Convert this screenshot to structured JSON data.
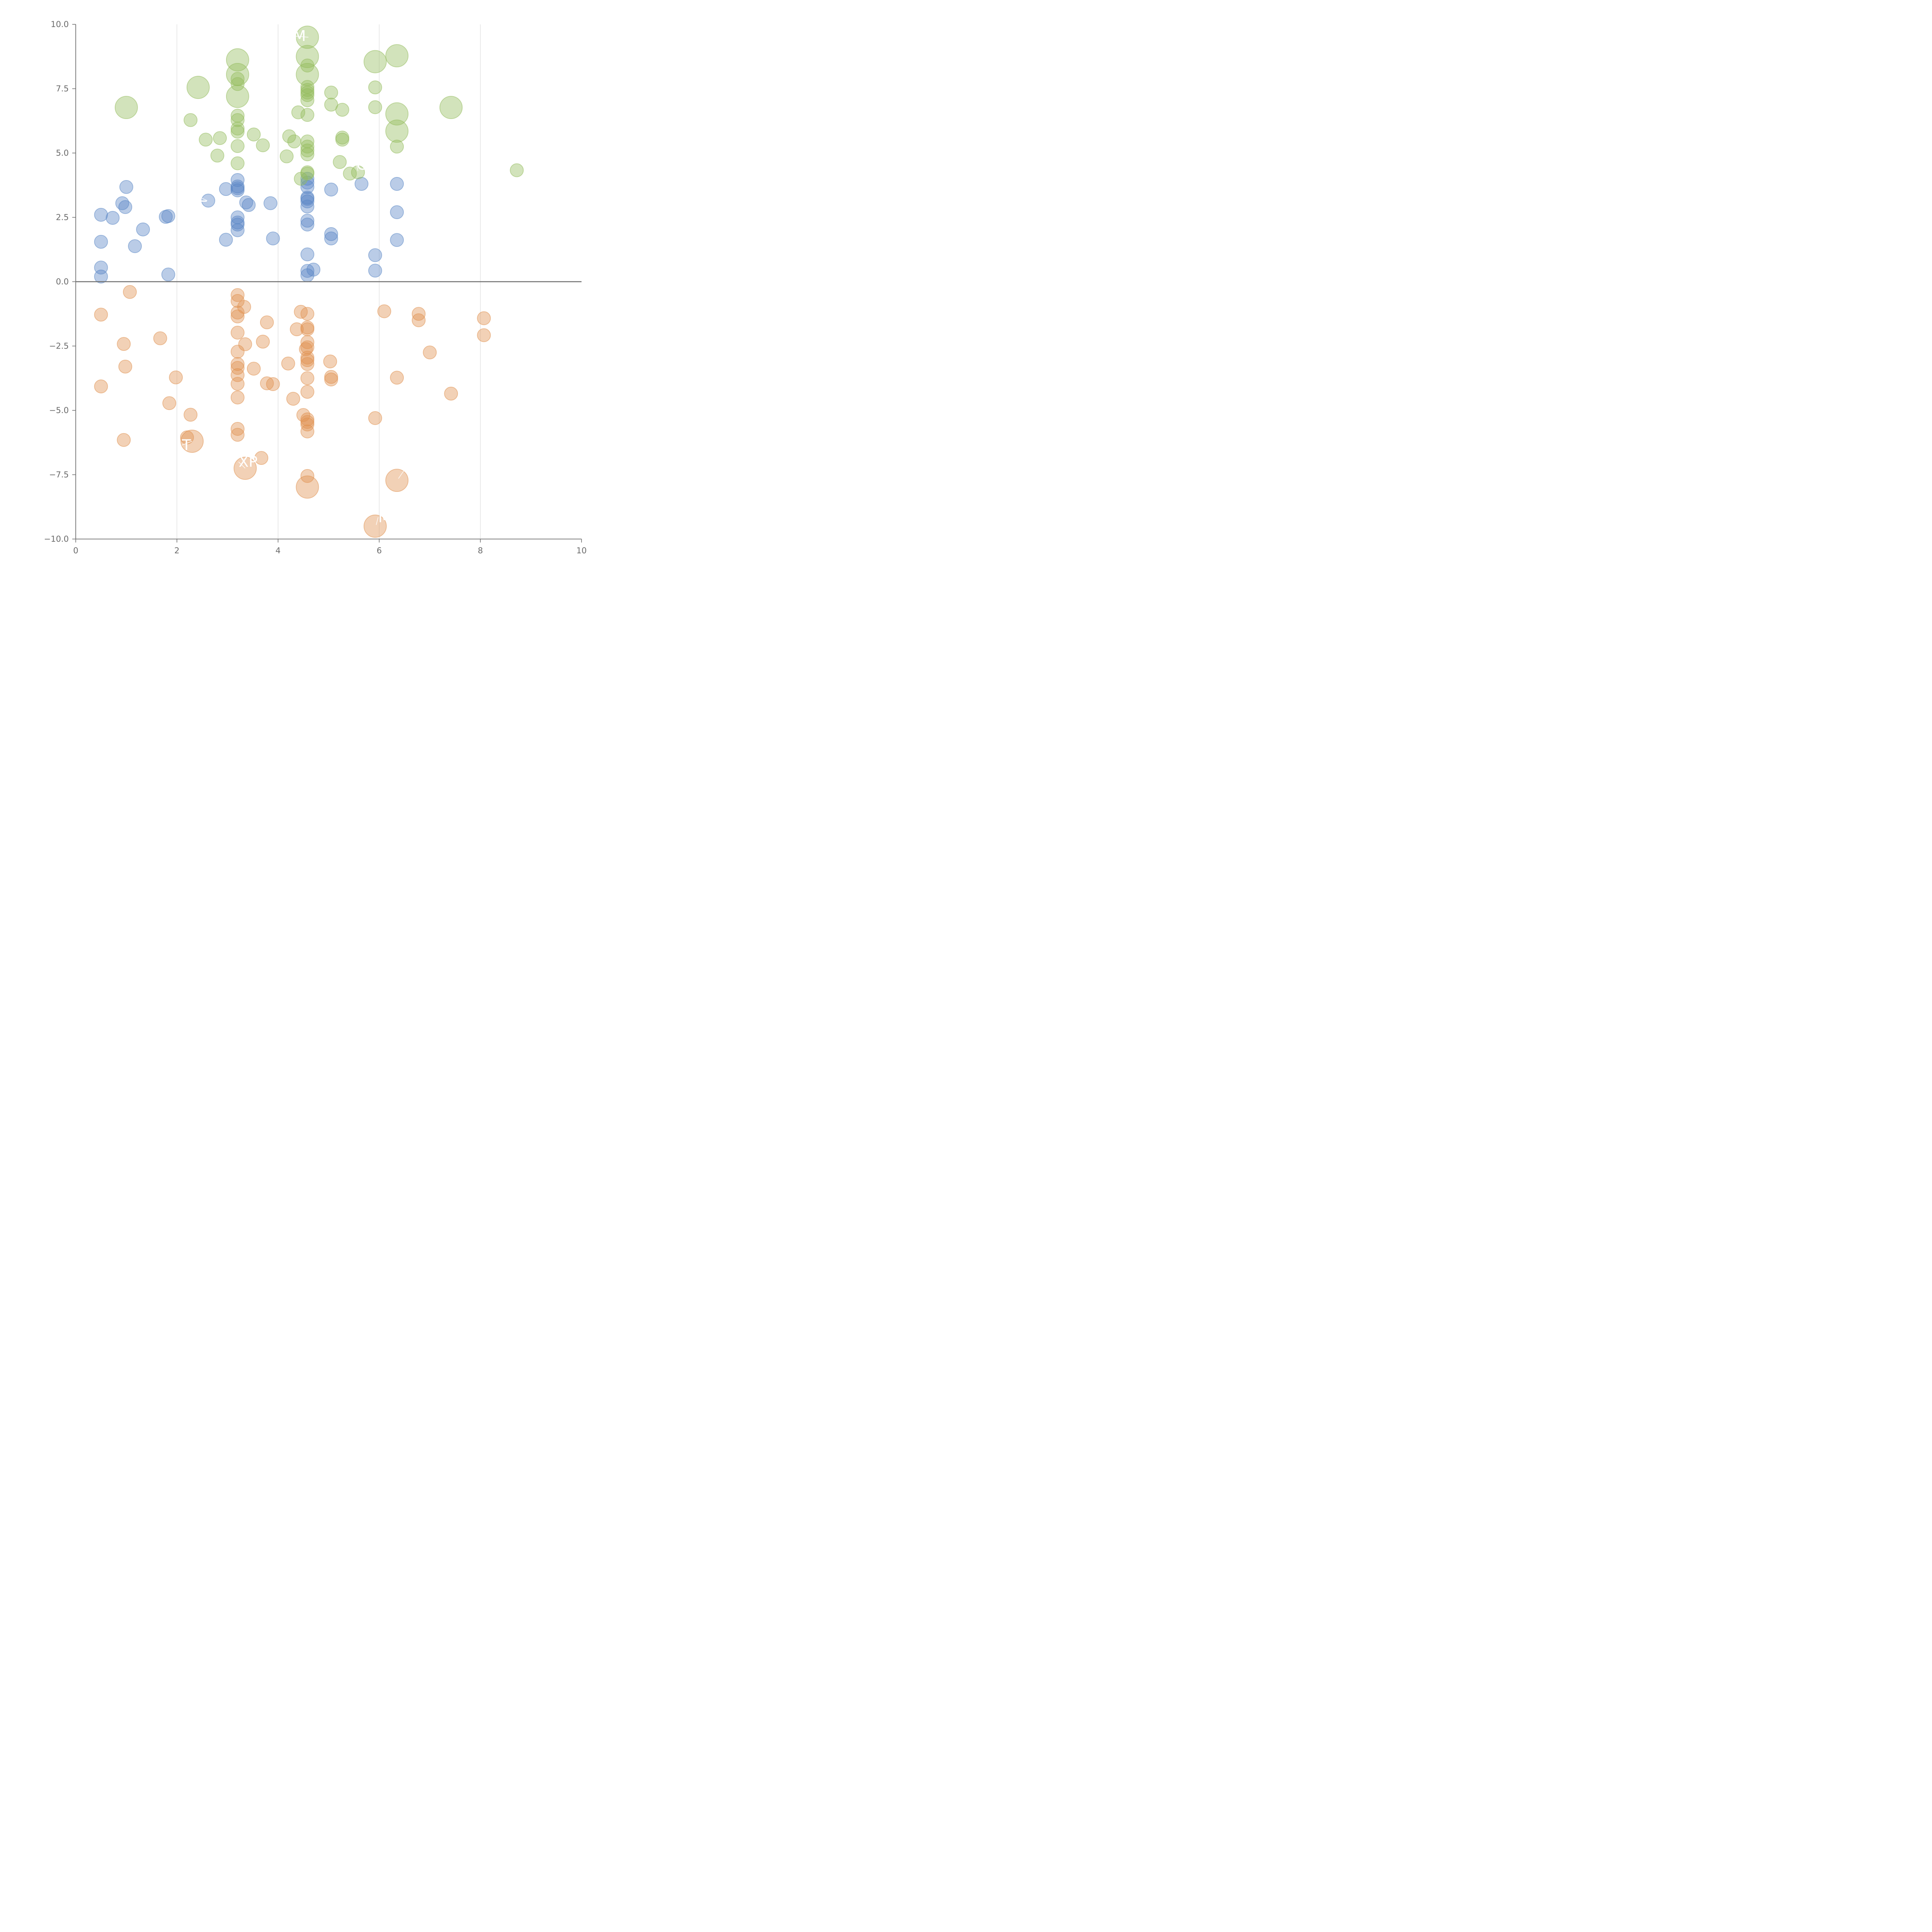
{
  "colors": {
    "blue": "#5a86c5",
    "green": "#93bc5c",
    "orange": "#e09250"
  },
  "chart_data": {
    "type": "scatter",
    "xlim": [
      0,
      10
    ],
    "ylim": [
      -10,
      10
    ],
    "xticks": [
      "0",
      "2",
      "4",
      "6",
      "8",
      "10"
    ],
    "yticks": [
      "10.0",
      "7.5",
      "5.0",
      "2.5",
      "0.0",
      "−2.5",
      "−5.0",
      "−7.5",
      "−10.0"
    ],
    "grid": "vertical-only",
    "series": [
      {
        "color": "blue",
        "points": [
          {
            "x": 0.5,
            "y": 2.6,
            "s": 1
          },
          {
            "x": 0.5,
            "y": 1.55,
            "s": 1
          },
          {
            "x": 0.5,
            "y": 0.55,
            "s": 1
          },
          {
            "x": 0.5,
            "y": 0.2,
            "s": 1
          },
          {
            "x": 0.73,
            "y": 2.48,
            "s": 1
          },
          {
            "x": 0.92,
            "y": 3.05,
            "s": 1
          },
          {
            "x": 0.98,
            "y": 2.9,
            "s": 1
          },
          {
            "x": 1.0,
            "y": 3.68,
            "s": 1
          },
          {
            "x": 1.17,
            "y": 1.38,
            "s": 1
          },
          {
            "x": 1.33,
            "y": 2.03,
            "s": 1
          },
          {
            "x": 1.78,
            "y": 2.52,
            "s": 1
          },
          {
            "x": 1.83,
            "y": 2.55,
            "s": 1
          },
          {
            "x": 1.83,
            "y": 0.28,
            "s": 1
          },
          {
            "x": 2.62,
            "y": 3.15,
            "s": 1
          },
          {
            "x": 2.97,
            "y": 3.6,
            "s": 1
          },
          {
            "x": 2.97,
            "y": 1.63,
            "s": 1
          },
          {
            "x": 3.2,
            "y": 3.95,
            "s": 1
          },
          {
            "x": 3.2,
            "y": 3.7,
            "s": 1
          },
          {
            "x": 3.2,
            "y": 3.63,
            "s": 1
          },
          {
            "x": 3.2,
            "y": 3.55,
            "s": 1
          },
          {
            "x": 3.2,
            "y": 2.5,
            "s": 1
          },
          {
            "x": 3.2,
            "y": 2.3,
            "s": 1
          },
          {
            "x": 3.2,
            "y": 2.22,
            "s": 1
          },
          {
            "x": 3.2,
            "y": 2.0,
            "s": 1
          },
          {
            "x": 3.37,
            "y": 3.08,
            "s": 1
          },
          {
            "x": 3.42,
            "y": 2.98,
            "s": 1
          },
          {
            "x": 3.85,
            "y": 3.05,
            "s": 1
          },
          {
            "x": 3.9,
            "y": 1.68,
            "s": 1
          },
          {
            "x": 4.58,
            "y": 4.0,
            "s": 1
          },
          {
            "x": 4.58,
            "y": 3.85,
            "s": 1
          },
          {
            "x": 4.58,
            "y": 3.68,
            "s": 1
          },
          {
            "x": 4.58,
            "y": 3.27,
            "s": 1
          },
          {
            "x": 4.58,
            "y": 3.22,
            "s": 1
          },
          {
            "x": 4.58,
            "y": 3.12,
            "s": 1
          },
          {
            "x": 4.58,
            "y": 2.92,
            "s": 1
          },
          {
            "x": 4.58,
            "y": 2.37,
            "s": 1
          },
          {
            "x": 4.58,
            "y": 2.22,
            "s": 1
          },
          {
            "x": 4.58,
            "y": 1.06,
            "s": 1
          },
          {
            "x": 4.58,
            "y": 0.42,
            "s": 1
          },
          {
            "x": 4.58,
            "y": 0.25,
            "s": 1
          },
          {
            "x": 4.7,
            "y": 0.47,
            "s": 1
          },
          {
            "x": 5.05,
            "y": 3.58,
            "s": 1
          },
          {
            "x": 5.05,
            "y": 1.85,
            "s": 1
          },
          {
            "x": 5.05,
            "y": 1.68,
            "s": 1
          },
          {
            "x": 5.65,
            "y": 3.8,
            "s": 1
          },
          {
            "x": 5.92,
            "y": 1.03,
            "s": 1
          },
          {
            "x": 5.92,
            "y": 0.43,
            "s": 1
          },
          {
            "x": 6.35,
            "y": 3.8,
            "s": 1
          },
          {
            "x": 6.35,
            "y": 2.7,
            "s": 1
          },
          {
            "x": 6.35,
            "y": 1.62,
            "s": 1
          }
        ]
      },
      {
        "color": "green",
        "points": [
          {
            "x": 1.0,
            "y": 6.77,
            "s": 2
          },
          {
            "x": 2.27,
            "y": 6.28,
            "s": 1
          },
          {
            "x": 2.42,
            "y": 7.55,
            "s": 2
          },
          {
            "x": 2.57,
            "y": 5.52,
            "s": 1
          },
          {
            "x": 2.8,
            "y": 4.9,
            "s": 1
          },
          {
            "x": 2.85,
            "y": 5.58,
            "s": 1
          },
          {
            "x": 3.2,
            "y": 8.62,
            "s": 2
          },
          {
            "x": 3.2,
            "y": 8.05,
            "s": 2
          },
          {
            "x": 3.2,
            "y": 7.88,
            "s": 1
          },
          {
            "x": 3.2,
            "y": 7.68,
            "s": 1
          },
          {
            "x": 3.2,
            "y": 7.2,
            "s": 2
          },
          {
            "x": 3.2,
            "y": 6.45,
            "s": 1
          },
          {
            "x": 3.2,
            "y": 6.28,
            "s": 1
          },
          {
            "x": 3.2,
            "y": 5.95,
            "s": 1
          },
          {
            "x": 3.2,
            "y": 5.83,
            "s": 1
          },
          {
            "x": 3.2,
            "y": 5.27,
            "s": 1
          },
          {
            "x": 3.2,
            "y": 4.6,
            "s": 1
          },
          {
            "x": 3.52,
            "y": 5.72,
            "s": 1
          },
          {
            "x": 3.7,
            "y": 5.3,
            "s": 1
          },
          {
            "x": 4.17,
            "y": 4.87,
            "s": 1
          },
          {
            "x": 4.22,
            "y": 5.65,
            "s": 1
          },
          {
            "x": 4.32,
            "y": 5.45,
            "s": 1
          },
          {
            "x": 4.4,
            "y": 6.58,
            "s": 1
          },
          {
            "x": 4.45,
            "y": 4.0,
            "s": 1
          },
          {
            "x": 4.58,
            "y": 9.5,
            "s": 2
          },
          {
            "x": 4.58,
            "y": 8.75,
            "s": 2
          },
          {
            "x": 4.58,
            "y": 8.05,
            "s": 2
          },
          {
            "x": 4.58,
            "y": 8.4,
            "s": 1
          },
          {
            "x": 4.58,
            "y": 7.57,
            "s": 1
          },
          {
            "x": 4.58,
            "y": 7.45,
            "s": 1
          },
          {
            "x": 4.58,
            "y": 7.35,
            "s": 1
          },
          {
            "x": 4.58,
            "y": 7.25,
            "s": 1
          },
          {
            "x": 4.58,
            "y": 7.05,
            "s": 1
          },
          {
            "x": 4.58,
            "y": 6.48,
            "s": 1
          },
          {
            "x": 4.58,
            "y": 5.45,
            "s": 1
          },
          {
            "x": 4.58,
            "y": 5.25,
            "s": 1
          },
          {
            "x": 4.58,
            "y": 5.1,
            "s": 1
          },
          {
            "x": 4.58,
            "y": 4.95,
            "s": 1
          },
          {
            "x": 4.58,
            "y": 4.25,
            "s": 1
          },
          {
            "x": 4.58,
            "y": 4.2,
            "s": 1
          },
          {
            "x": 5.05,
            "y": 7.35,
            "s": 1
          },
          {
            "x": 5.05,
            "y": 6.88,
            "s": 1
          },
          {
            "x": 5.22,
            "y": 4.65,
            "s": 1
          },
          {
            "x": 5.27,
            "y": 6.68,
            "s": 1
          },
          {
            "x": 5.27,
            "y": 5.6,
            "s": 1
          },
          {
            "x": 5.27,
            "y": 5.52,
            "s": 1
          },
          {
            "x": 5.42,
            "y": 4.2,
            "s": 1
          },
          {
            "x": 5.58,
            "y": 4.25,
            "s": 1
          },
          {
            "x": 5.92,
            "y": 8.55,
            "s": 2
          },
          {
            "x": 5.92,
            "y": 7.55,
            "s": 1
          },
          {
            "x": 5.92,
            "y": 6.78,
            "s": 1
          },
          {
            "x": 6.35,
            "y": 8.78,
            "s": 2
          },
          {
            "x": 6.35,
            "y": 6.52,
            "s": 2
          },
          {
            "x": 6.35,
            "y": 5.85,
            "s": 2
          },
          {
            "x": 6.35,
            "y": 5.25,
            "s": 1
          },
          {
            "x": 7.42,
            "y": 6.77,
            "s": 2
          },
          {
            "x": 8.72,
            "y": 4.33,
            "s": 1
          }
        ]
      },
      {
        "color": "orange",
        "points": [
          {
            "x": 0.5,
            "y": -1.28,
            "s": 1
          },
          {
            "x": 0.5,
            "y": -4.07,
            "s": 1
          },
          {
            "x": 0.95,
            "y": -2.42,
            "s": 1
          },
          {
            "x": 0.95,
            "y": -6.15,
            "s": 1
          },
          {
            "x": 0.98,
            "y": -3.3,
            "s": 1
          },
          {
            "x": 1.07,
            "y": -0.4,
            "s": 1
          },
          {
            "x": 1.67,
            "y": -2.2,
            "s": 1
          },
          {
            "x": 1.85,
            "y": -4.72,
            "s": 1
          },
          {
            "x": 1.98,
            "y": -3.72,
            "s": 1
          },
          {
            "x": 2.2,
            "y": -6.05,
            "s": 1
          },
          {
            "x": 2.27,
            "y": -5.17,
            "s": 1
          },
          {
            "x": 2.3,
            "y": -6.2,
            "s": 2
          },
          {
            "x": 3.2,
            "y": -0.52,
            "s": 1
          },
          {
            "x": 3.2,
            "y": -0.75,
            "s": 1
          },
          {
            "x": 3.2,
            "y": -1.2,
            "s": 1
          },
          {
            "x": 3.2,
            "y": -1.35,
            "s": 1
          },
          {
            "x": 3.2,
            "y": -1.98,
            "s": 1
          },
          {
            "x": 3.2,
            "y": -2.72,
            "s": 1
          },
          {
            "x": 3.2,
            "y": -3.2,
            "s": 1
          },
          {
            "x": 3.2,
            "y": -3.35,
            "s": 1
          },
          {
            "x": 3.2,
            "y": -3.63,
            "s": 1
          },
          {
            "x": 3.2,
            "y": -3.97,
            "s": 1
          },
          {
            "x": 3.2,
            "y": -4.5,
            "s": 1
          },
          {
            "x": 3.2,
            "y": -5.72,
            "s": 1
          },
          {
            "x": 3.2,
            "y": -5.95,
            "s": 1
          },
          {
            "x": 3.33,
            "y": -0.98,
            "s": 1
          },
          {
            "x": 3.35,
            "y": -2.43,
            "s": 1
          },
          {
            "x": 3.35,
            "y": -7.25,
            "s": 2
          },
          {
            "x": 3.52,
            "y": -3.38,
            "s": 1
          },
          {
            "x": 3.67,
            "y": -6.85,
            "s": 1
          },
          {
            "x": 3.7,
            "y": -2.33,
            "s": 1
          },
          {
            "x": 3.78,
            "y": -1.58,
            "s": 1
          },
          {
            "x": 3.78,
            "y": -3.95,
            "s": 1
          },
          {
            "x": 3.9,
            "y": -3.98,
            "s": 1
          },
          {
            "x": 4.2,
            "y": -3.18,
            "s": 1
          },
          {
            "x": 4.3,
            "y": -4.55,
            "s": 1
          },
          {
            "x": 4.37,
            "y": -1.85,
            "s": 1
          },
          {
            "x": 4.45,
            "y": -1.17,
            "s": 1
          },
          {
            "x": 4.5,
            "y": -5.18,
            "s": 1
          },
          {
            "x": 4.55,
            "y": -2.62,
            "s": 1
          },
          {
            "x": 4.58,
            "y": -1.25,
            "s": 1
          },
          {
            "x": 4.58,
            "y": -1.78,
            "s": 1
          },
          {
            "x": 4.58,
            "y": -1.85,
            "s": 1
          },
          {
            "x": 4.58,
            "y": -2.35,
            "s": 1
          },
          {
            "x": 4.58,
            "y": -2.55,
            "s": 1
          },
          {
            "x": 4.58,
            "y": -2.95,
            "s": 1
          },
          {
            "x": 4.58,
            "y": -3.05,
            "s": 1
          },
          {
            "x": 4.58,
            "y": -3.2,
            "s": 1
          },
          {
            "x": 4.58,
            "y": -3.75,
            "s": 1
          },
          {
            "x": 4.58,
            "y": -4.28,
            "s": 1
          },
          {
            "x": 4.58,
            "y": -5.35,
            "s": 1
          },
          {
            "x": 4.58,
            "y": -5.45,
            "s": 1
          },
          {
            "x": 4.58,
            "y": -5.55,
            "s": 1
          },
          {
            "x": 4.58,
            "y": -5.82,
            "s": 1
          },
          {
            "x": 4.58,
            "y": -7.55,
            "s": 1
          },
          {
            "x": 4.58,
            "y": -7.98,
            "s": 2
          },
          {
            "x": 5.03,
            "y": -3.1,
            "s": 1
          },
          {
            "x": 5.05,
            "y": -3.7,
            "s": 1
          },
          {
            "x": 5.05,
            "y": -3.8,
            "s": 1
          },
          {
            "x": 5.92,
            "y": -5.3,
            "s": 1
          },
          {
            "x": 5.92,
            "y": -9.5,
            "s": 2
          },
          {
            "x": 6.1,
            "y": -1.15,
            "s": 1
          },
          {
            "x": 6.35,
            "y": -3.73,
            "s": 1
          },
          {
            "x": 6.35,
            "y": -7.72,
            "s": 2
          },
          {
            "x": 6.78,
            "y": -1.25,
            "s": 1
          },
          {
            "x": 6.78,
            "y": -1.5,
            "s": 1
          },
          {
            "x": 7.0,
            "y": -2.75,
            "s": 1
          },
          {
            "x": 7.42,
            "y": -4.35,
            "s": 1
          },
          {
            "x": 8.07,
            "y": -1.42,
            "s": 1
          },
          {
            "x": 8.07,
            "y": -2.08,
            "s": 1
          }
        ]
      }
    ],
    "labels": [
      {
        "text": "M",
        "x": 4.3,
        "y": 9.55,
        "lx": 4.6,
        "ly": 9.5
      },
      {
        "text": "T",
        "x": 2.1,
        "y": -6.35,
        "lx": 2.3,
        "ly": -6.2
      },
      {
        "text": "XP",
        "x": 3.22,
        "y": -7.0,
        "lx": 3.35,
        "ly": -7.25
      },
      {
        "text": "S",
        "x": 6.52,
        "y": -7.25,
        "lx": 6.38,
        "ly": -7.65
      },
      {
        "text": "M",
        "x": 5.98,
        "y": -9.15,
        "lx": 5.94,
        "ly": -9.45
      },
      {
        "text": "C",
        "x": 5.55,
        "y": 4.55,
        "lx": 5.58,
        "ly": 4.3
      },
      {
        "text": "L",
        "x": 2.43,
        "y": 3.3,
        "lx": 2.6,
        "ly": 3.15
      }
    ]
  }
}
